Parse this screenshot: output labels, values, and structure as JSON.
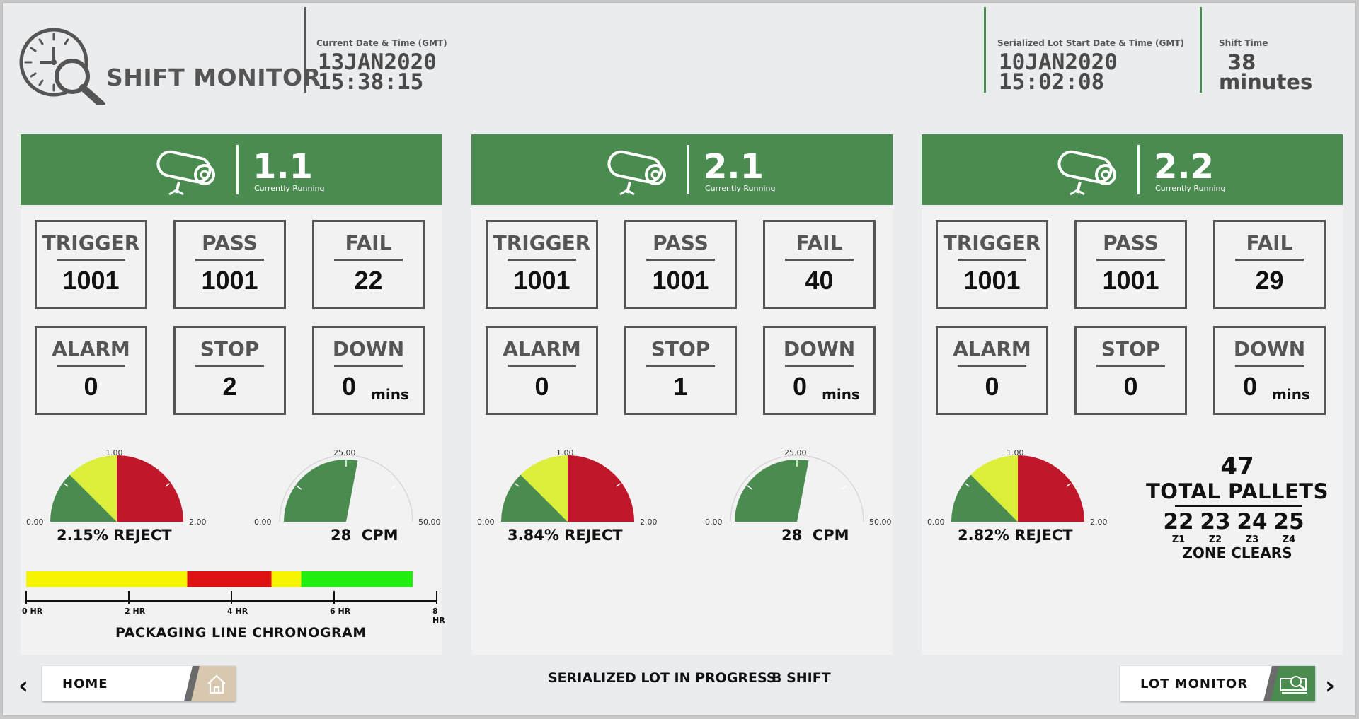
{
  "header": {
    "title": "SHIFT MONITOR",
    "current_label": "Current Date & Time (GMT)",
    "current_date": "13JAN2020",
    "current_time": "15:38:15",
    "lot_label": "Serialized Lot Start Date & Time (GMT)",
    "lot_date": "10JAN2020",
    "lot_time": "15:02:08",
    "shift_label": "Shift Time",
    "shift_value": "38",
    "shift_unit": "minutes"
  },
  "colors": {
    "green": "#4a8b50",
    "yellow": "#dcef3a",
    "red": "#c0182a",
    "gray_text": "#555555"
  },
  "panels": [
    {
      "title": "1.1",
      "status": "Currently Running",
      "trigger_label": "TRIGGER",
      "trigger": "1001",
      "pass_label": "PASS",
      "pass": "1001",
      "fail_label": "FAIL",
      "fail": "22",
      "alarm_label": "ALARM",
      "alarm": "0",
      "stop_label": "STOP",
      "stop": "2",
      "down_label": "DOWN",
      "down": "0",
      "down_unit": "mins",
      "reject_min": "0.00",
      "reject_mid": "1.00",
      "reject_max": "2.00",
      "reject_value": 2.15,
      "reject_text": "2.15",
      "reject_unit": "% REJECT",
      "cpm_min": "0.00",
      "cpm_mid": "25.00",
      "cpm_max": "50.00",
      "cpm_value": 28,
      "cpm_text": "28",
      "cpm_unit": "CPM",
      "chronogram": {
        "title": "PACKAGING LINE CHRONOGRAM",
        "ticks": [
          "0 HR",
          "2 HR",
          "4 HR",
          "6 HR",
          "8 HR"
        ],
        "segments": [
          {
            "start_hr": 0,
            "end_hr": 3.25,
            "color": "#f5f500"
          },
          {
            "start_hr": 3.25,
            "end_hr": 4.95,
            "color": "#dd1111"
          },
          {
            "start_hr": 4.95,
            "end_hr": 5.55,
            "color": "#f5f500"
          },
          {
            "start_hr": 5.55,
            "end_hr": 7.8,
            "color": "#22ee11"
          }
        ]
      }
    },
    {
      "title": "2.1",
      "status": "Currently Running",
      "trigger_label": "TRIGGER",
      "trigger": "1001",
      "pass_label": "PASS",
      "pass": "1001",
      "fail_label": "FAIL",
      "fail": "40",
      "alarm_label": "ALARM",
      "alarm": "0",
      "stop_label": "STOP",
      "stop": "1",
      "down_label": "DOWN",
      "down": "0",
      "down_unit": "mins",
      "reject_min": "0.00",
      "reject_mid": "1.00",
      "reject_max": "2.00",
      "reject_value": 3.84,
      "reject_text": "3.84",
      "reject_unit": "% REJECT",
      "cpm_min": "0.00",
      "cpm_mid": "25.00",
      "cpm_max": "50.00",
      "cpm_value": 28,
      "cpm_text": "28",
      "cpm_unit": "CPM"
    },
    {
      "title": "2.2",
      "status": "Currently Running",
      "trigger_label": "TRIGGER",
      "trigger": "1001",
      "pass_label": "PASS",
      "pass": "1001",
      "fail_label": "FAIL",
      "fail": "29",
      "alarm_label": "ALARM",
      "alarm": "0",
      "stop_label": "STOP",
      "stop": "0",
      "down_label": "DOWN",
      "down": "0",
      "down_unit": "mins",
      "reject_min": "0.00",
      "reject_mid": "1.00",
      "reject_max": "2.00",
      "reject_value": 2.82,
      "reject_text": "2.82",
      "reject_unit": "% REJECT",
      "pallets": {
        "count": "47",
        "label": "TOTAL PALLETS",
        "zones": [
          {
            "value": "22",
            "name": "Z1"
          },
          {
            "value": "23",
            "name": "Z2"
          },
          {
            "value": "24",
            "name": "Z3"
          },
          {
            "value": "25",
            "name": "Z4"
          }
        ],
        "zone_label": "ZONE CLEARS"
      }
    }
  ],
  "footer": {
    "home_label": "HOME",
    "lot_monitor_label": "LOT MONITOR",
    "status_text": "SERIALIZED LOT IN PROGRESS",
    "shift_text": "B SHIFT",
    "prev_arrow": "‹",
    "next_arrow": "›"
  }
}
